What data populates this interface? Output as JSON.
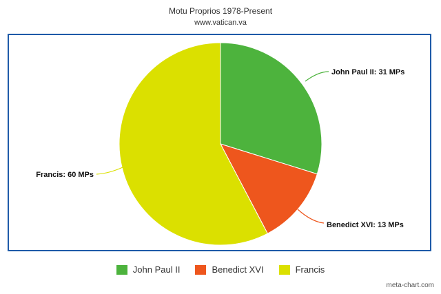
{
  "chart_data": {
    "type": "pie",
    "title": "Motu Proprios 1978-Present",
    "subtitle": "www.vatican.va",
    "categories": [
      "John Paul II",
      "Benedict XVI",
      "Francis"
    ],
    "values": [
      31,
      13,
      60
    ],
    "slice_labels": [
      "John Paul II: 31 MPs",
      "Benedict XVI: 13 MPs",
      "Francis: 60 MPs"
    ],
    "colors": [
      "#4db33d",
      "#ee561d",
      "#dbe000"
    ],
    "legend_position": "bottom",
    "start": "top, clockwise"
  },
  "watermark": "meta-chart.com"
}
